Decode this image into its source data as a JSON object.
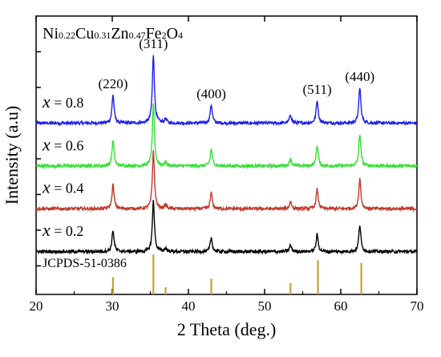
{
  "chart_data": {
    "type": "line",
    "title_formula": [
      {
        "t": "Ni",
        "sub": false
      },
      {
        "t": "0.22",
        "sub": true
      },
      {
        "t": "Cu",
        "sub": false
      },
      {
        "t": "0.31",
        "sub": true
      },
      {
        "t": "Zn",
        "sub": false
      },
      {
        "t": "0.47",
        "sub": true
      },
      {
        "t": "Fe",
        "sub": false
      },
      {
        "t": "2",
        "sub": true
      },
      {
        "t": "O",
        "sub": false
      },
      {
        "t": "4",
        "sub": true
      }
    ],
    "xlabel": "2 Theta (deg.)",
    "ylabel": "Intensity (a.u)",
    "xlim": [
      20,
      70
    ],
    "xticks": [
      20,
      30,
      40,
      50,
      60,
      70
    ],
    "series_var": "x",
    "series_eq": " = ",
    "series": [
      {
        "name": "0.8",
        "color": "#1f1fe6",
        "baseline": 100
      },
      {
        "name": "0.6",
        "color": "#33e033",
        "baseline": 70
      },
      {
        "name": "0.4",
        "color": "#c0392b",
        "baseline": 40
      },
      {
        "name": "0.2",
        "color": "#000000",
        "baseline": 10
      }
    ],
    "peaks": [
      {
        "pos": 30.1,
        "height": 20,
        "label": "(220)"
      },
      {
        "pos": 35.4,
        "height": 48,
        "label": "(311)"
      },
      {
        "pos": 37.0,
        "height": 3,
        "label": ""
      },
      {
        "pos": 43.0,
        "height": 13,
        "label": "(400)"
      },
      {
        "pos": 53.4,
        "height": 6,
        "label": ""
      },
      {
        "pos": 56.9,
        "height": 16,
        "label": "(511)"
      },
      {
        "pos": 62.5,
        "height": 25,
        "label": "(440)"
      }
    ],
    "reference": {
      "label": "JCPDS-51-0386",
      "color": "#c8a030",
      "lines": [
        {
          "pos": 30.1,
          "height": 12
        },
        {
          "pos": 35.4,
          "height": 28
        },
        {
          "pos": 37.0,
          "height": 5
        },
        {
          "pos": 43.0,
          "height": 11
        },
        {
          "pos": 53.4,
          "height": 8
        },
        {
          "pos": 57.0,
          "height": 24
        },
        {
          "pos": 62.7,
          "height": 22
        }
      ]
    }
  }
}
